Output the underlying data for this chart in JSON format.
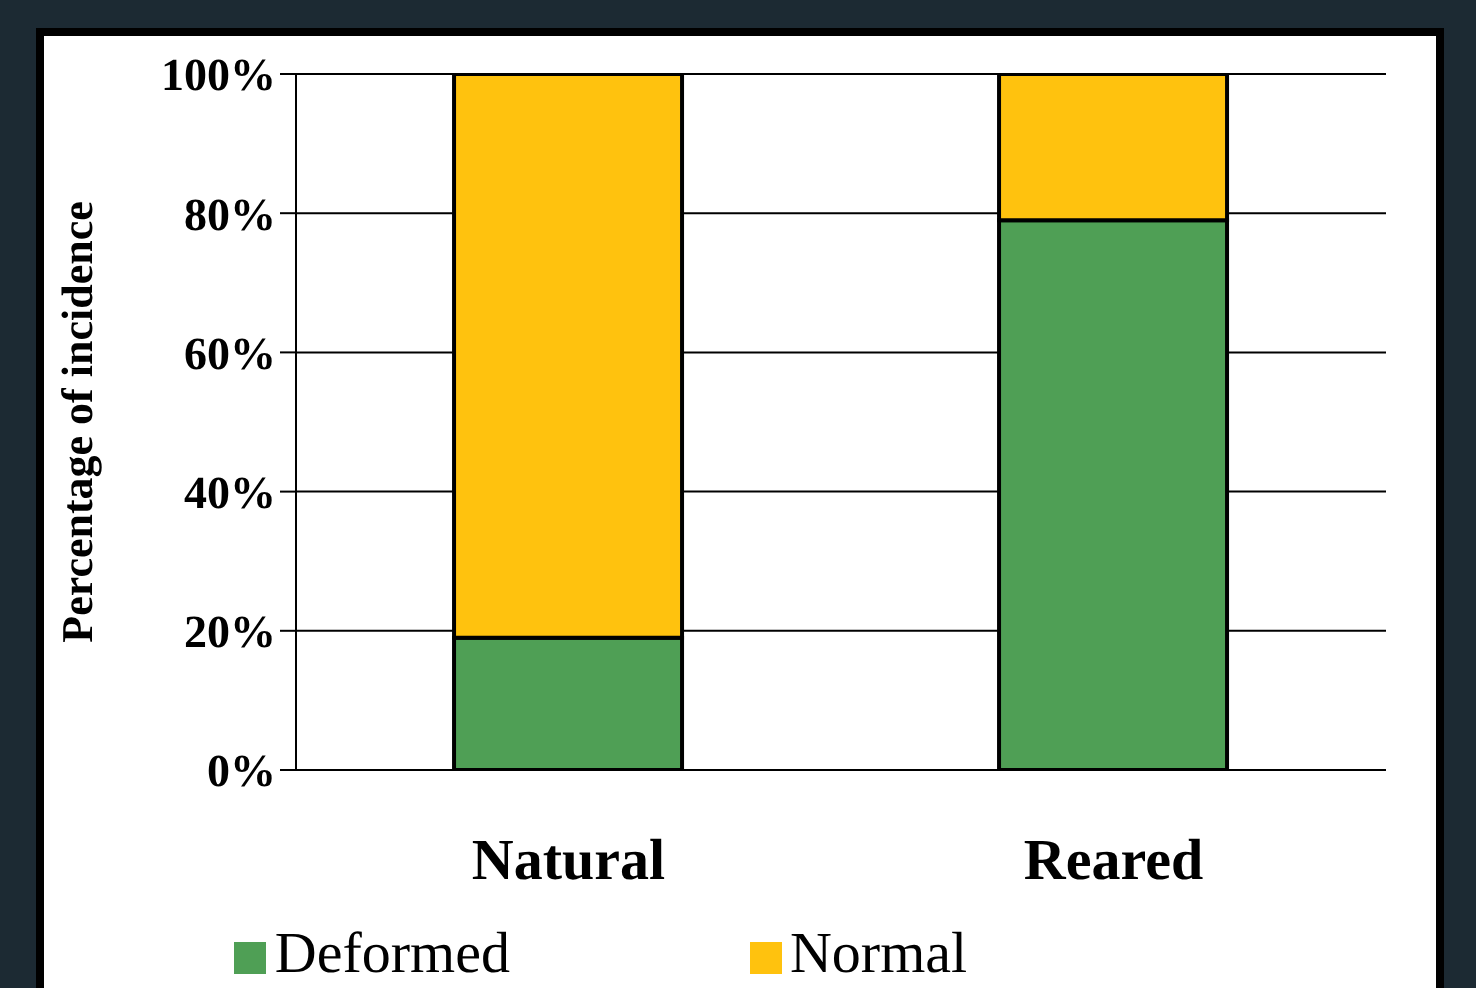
{
  "chart_data": {
    "type": "bar",
    "stacked": true,
    "ylabel": "Percentage of incidence",
    "categories": [
      "Natural",
      "Reared"
    ],
    "series": [
      {
        "name": "Deformed",
        "color": "#4f9f55",
        "values": [
          19,
          79
        ]
      },
      {
        "name": "Normal",
        "color": "#ffc20e",
        "values": [
          81,
          21
        ]
      }
    ],
    "ylim": [
      0,
      100
    ],
    "yticks": [
      {
        "value": 0,
        "label": "0%"
      },
      {
        "value": 20,
        "label": "20%"
      },
      {
        "value": 40,
        "label": "40%"
      },
      {
        "value": 60,
        "label": "60%"
      },
      {
        "value": 80,
        "label": "80%"
      },
      {
        "value": 100,
        "label": "100%"
      }
    ],
    "grid": "y",
    "legend": "bottom"
  }
}
